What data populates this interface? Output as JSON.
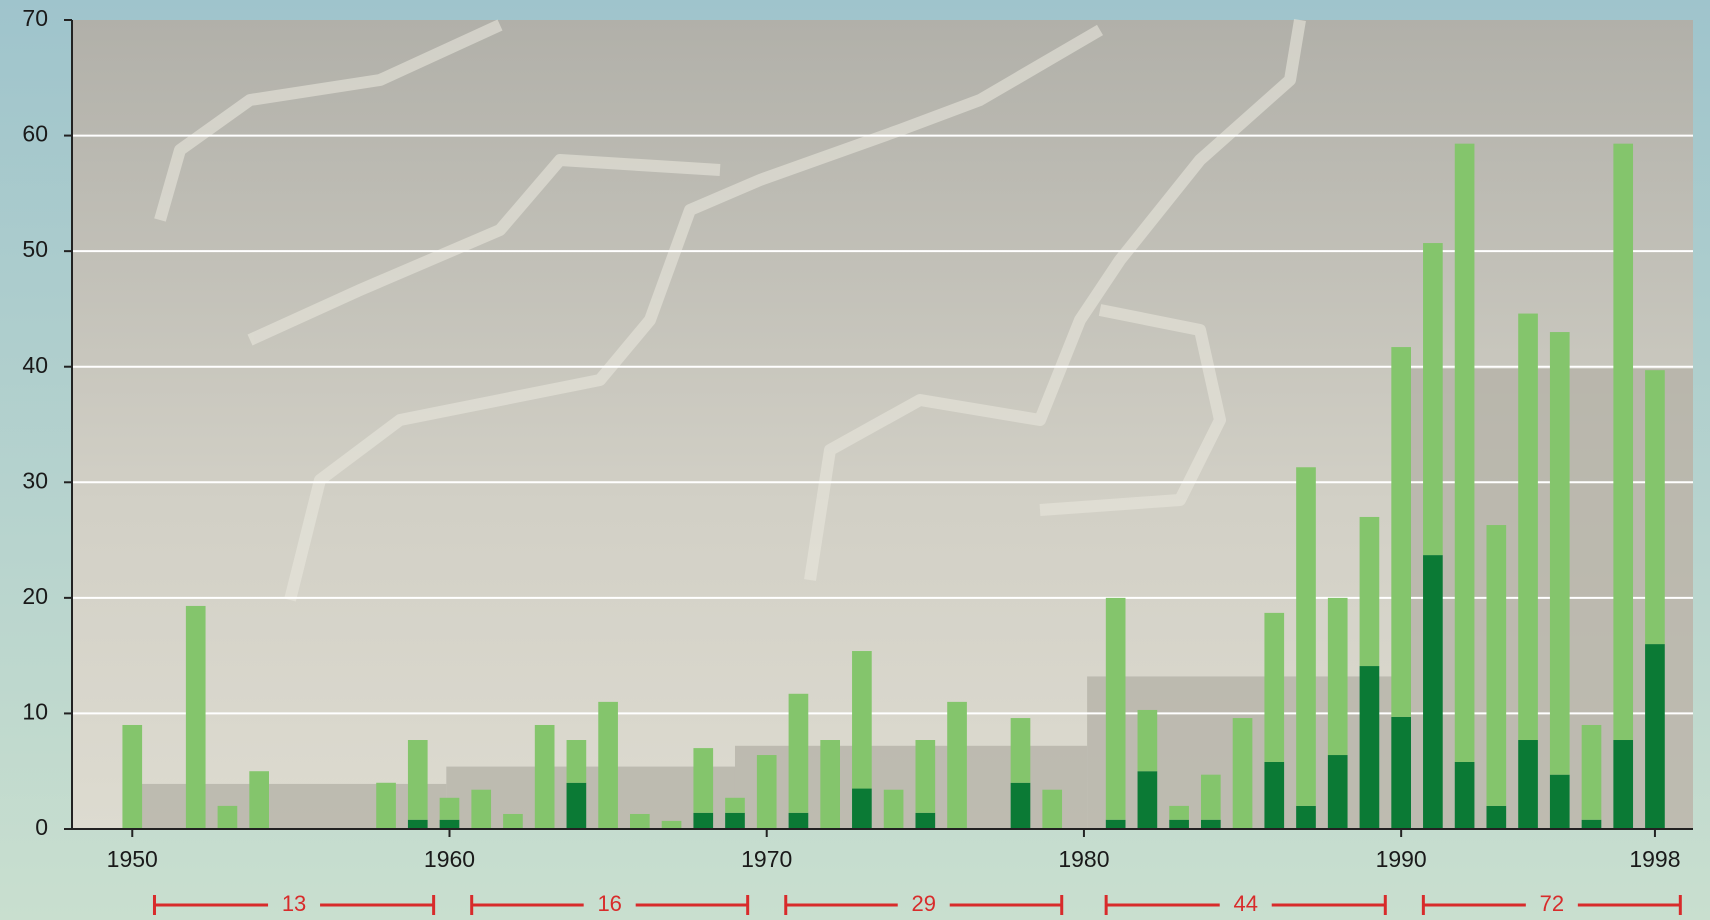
{
  "chart_data": {
    "type": "stacked-bar",
    "x": [
      1950,
      1951,
      1952,
      1953,
      1954,
      1955,
      1956,
      1957,
      1958,
      1959,
      1960,
      1961,
      1962,
      1963,
      1964,
      1965,
      1966,
      1967,
      1968,
      1969,
      1970,
      1971,
      1972,
      1973,
      1974,
      1975,
      1976,
      1977,
      1978,
      1979,
      1980,
      1981,
      1982,
      1983,
      1984,
      1985,
      1986,
      1987,
      1988,
      1989,
      1990,
      1991,
      1992,
      1993,
      1994,
      1995,
      1996,
      1997,
      1998
    ],
    "series": [
      {
        "color": "#0b7a35",
        "values": [
          0,
          0,
          0,
          0,
          0,
          0,
          0,
          0,
          0,
          0.8,
          0.8,
          0,
          0,
          0,
          4,
          0,
          0,
          0,
          1.4,
          1.4,
          0,
          1.4,
          0,
          3.5,
          0,
          1.4,
          0,
          0,
          4,
          0,
          0,
          0.8,
          5,
          0.8,
          0.8,
          0,
          5.8,
          2,
          6.4,
          14.1,
          9.7,
          23.7,
          5.8,
          2,
          7.7,
          4.7,
          0.8,
          7.7,
          16
        ]
      },
      {
        "color": "#84c56c",
        "values": [
          9,
          0,
          19.3,
          2,
          5,
          0,
          0,
          0,
          4,
          6.9,
          1.9,
          3.4,
          1.3,
          9,
          3.7,
          11,
          1.3,
          0.7,
          5.6,
          1.3,
          6.4,
          10.3,
          7.7,
          11.9,
          3.4,
          6.3,
          11,
          0,
          5.6,
          3.4,
          0,
          19.2,
          5.3,
          1.2,
          3.9,
          9.6,
          12.9,
          29.3,
          13.6,
          12.9,
          32,
          27,
          53.5,
          24.3,
          36.9,
          38.3,
          8.2,
          51.6,
          23.7
        ]
      }
    ],
    "decade_means": {
      "color": "#b3b0a6",
      "values": [
        3.9,
        5.4,
        7.2,
        13.2,
        39.8
      ],
      "bins": [
        1950.3,
        1959.9,
        1969.0,
        1980.1,
        1990.2,
        1999.2
      ]
    },
    "decade_totals": {
      "color": "#d82b2b",
      "values": [
        13,
        16,
        29,
        44,
        72
      ],
      "starts": [
        1950.7,
        1960.7,
        1970.6,
        1980.7,
        1990.7
      ],
      "ends": [
        1959.5,
        1969.4,
        1979.3,
        1989.5,
        1998.8
      ]
    },
    "xlim": [
      1948.1,
      1999.2
    ],
    "xticks": [
      1950,
      1960,
      1970,
      1980,
      1990,
      1998
    ],
    "ylim": [
      0,
      70
    ],
    "yticks": [
      0,
      10,
      20,
      30,
      40,
      50,
      60,
      70
    ],
    "grid": true
  }
}
